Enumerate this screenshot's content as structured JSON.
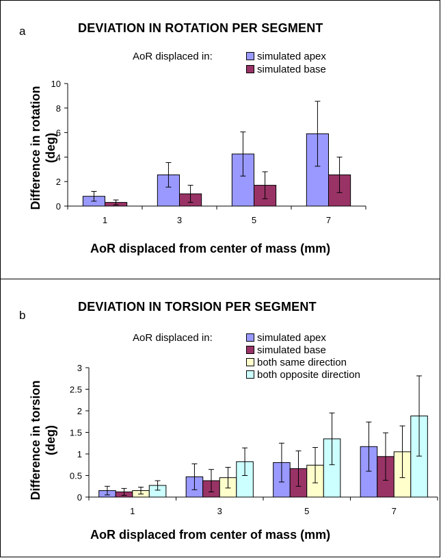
{
  "chart_data": [
    {
      "panel_label": "a",
      "type": "bar",
      "title": "DEVIATION IN ROTATION PER SEGMENT",
      "legend_prefix": "AoR displaced in:",
      "xlabel": "AoR displaced from center of mass (mm)",
      "ylabel_line1": "Difference in rotation",
      "ylabel_line2": "(deg)",
      "categories": [
        "1",
        "3",
        "5",
        "7"
      ],
      "ylim": [
        0,
        10
      ],
      "yticks": [
        "0",
        "2",
        "4",
        "6",
        "8",
        "10"
      ],
      "grid": false,
      "legend_placement": "top-right",
      "series": [
        {
          "name": "simulated apex",
          "color": "#9999ff",
          "values": [
            0.8,
            2.55,
            4.25,
            5.9
          ],
          "err": [
            0.4,
            1.0,
            1.8,
            2.65
          ]
        },
        {
          "name": "simulated base",
          "color": "#993366",
          "values": [
            0.3,
            1.0,
            1.7,
            2.55
          ],
          "err": [
            0.2,
            0.7,
            1.1,
            1.45
          ]
        }
      ]
    },
    {
      "panel_label": "b",
      "type": "bar",
      "title": "DEVIATION IN TORSION PER SEGMENT",
      "legend_prefix": "AoR displaced in:",
      "xlabel": "AoR displaced from center of mass (mm)",
      "ylabel_line1": "Difference in torsion",
      "ylabel_line2": "(deg)",
      "categories": [
        "1",
        "3",
        "5",
        "7"
      ],
      "ylim": [
        0,
        3
      ],
      "yticks": [
        "0",
        "0.5",
        "1",
        "1.5",
        "2",
        "2.5",
        "3"
      ],
      "grid": false,
      "legend_placement": "top-right",
      "series": [
        {
          "name": "simulated apex",
          "color": "#9999ff",
          "values": [
            0.15,
            0.47,
            0.8,
            1.17
          ],
          "err": [
            0.1,
            0.3,
            0.45,
            0.57
          ]
        },
        {
          "name": "simulated base",
          "color": "#993366",
          "values": [
            0.12,
            0.38,
            0.66,
            0.94
          ],
          "err": [
            0.08,
            0.26,
            0.41,
            0.55
          ]
        },
        {
          "name": "both same direction",
          "color": "#ffffcc",
          "values": [
            0.15,
            0.45,
            0.74,
            1.05
          ],
          "err": [
            0.08,
            0.24,
            0.41,
            0.6
          ]
        },
        {
          "name": "both opposite direction",
          "color": "#ccffff",
          "values": [
            0.27,
            0.82,
            1.35,
            1.88
          ],
          "err": [
            0.11,
            0.32,
            0.6,
            0.93
          ]
        }
      ]
    }
  ]
}
